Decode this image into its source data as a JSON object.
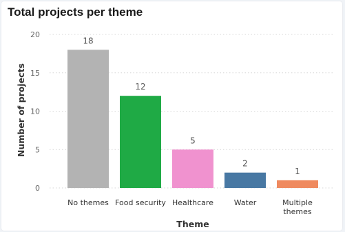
{
  "chart_data": {
    "type": "bar",
    "title": "Total projects per theme",
    "xlabel": "Theme",
    "ylabel": "Number of projects",
    "ylim": [
      0,
      20
    ],
    "yticks": [
      0,
      5,
      10,
      15,
      20
    ],
    "grid": true,
    "legend": "none",
    "categories": [
      "No themes",
      "Food security",
      "Healthcare",
      "Water",
      "Multiple themes"
    ],
    "category_lines": [
      [
        "No themes"
      ],
      [
        "Food security"
      ],
      [
        "Healthcare"
      ],
      [
        "Water"
      ],
      [
        "Multiple",
        "themes"
      ]
    ],
    "values": [
      18,
      12,
      5,
      2,
      1
    ],
    "colors": [
      "#b3b3b3",
      "#1faa45",
      "#f092cf",
      "#4878a3",
      "#ef8a5f"
    ]
  }
}
